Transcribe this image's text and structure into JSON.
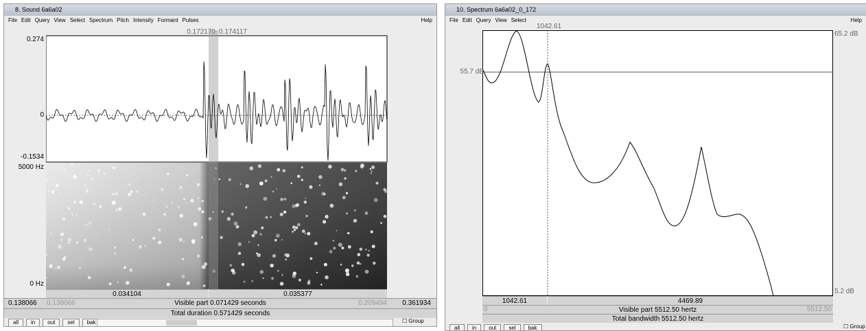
{
  "left_window": {
    "title": "8. Sound 6a6a02",
    "menu": [
      "File",
      "Edit",
      "Query",
      "View",
      "Select",
      "Spectrum",
      "Pitch",
      "Intensity",
      "Formant",
      "Pulses"
    ],
    "help": "Help",
    "cursor_left": "0.172170",
    "cursor_right": "0.174117",
    "wave_max": "0.274",
    "wave_zero": "0",
    "wave_min": "-0.1534",
    "freq_max": "5000 Hz",
    "freq_min": "0 Hz",
    "left_part": "0.034104",
    "right_part": "0.035377",
    "window_start": "0.138066",
    "visible_start": "0.138066",
    "visible_part": "Visible part 0.071429 seconds",
    "visible_end": "0.209494",
    "window_end": "0.361934",
    "total_duration": "Total duration 0.571429 seconds",
    "buttons": [
      "all",
      "in",
      "out",
      "sel",
      "bak"
    ],
    "group": "Group"
  },
  "right_window": {
    "title": "10. Spectrum 6a6a02_0_172",
    "menu": [
      "File",
      "Edit",
      "Query",
      "View",
      "Select"
    ],
    "help": "Help",
    "cursor": "1042.61",
    "db_max": "65.2 dB",
    "db_cursor": "55.7 dB",
    "db_min": "5.2 dB",
    "left_part": "1042.61",
    "right_part": "4469.89",
    "visible_start": "0",
    "visible_part": "Visible part 5512.50 hertz",
    "visible_end": "5512.50",
    "total_bandwidth": "Total bandwidth 5512.50 hertz",
    "buttons": [
      "all",
      "in",
      "out",
      "sel",
      "bak"
    ],
    "group": "Group"
  }
}
